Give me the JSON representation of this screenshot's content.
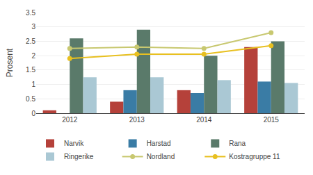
{
  "chart_data": {
    "type": "bar",
    "categories": [
      "2012",
      "2013",
      "2014",
      "2015"
    ],
    "series": [
      {
        "name": "Narvik",
        "type": "bar",
        "color": "#b5413a",
        "values": [
          0.1,
          0.4,
          0.8,
          2.3
        ]
      },
      {
        "name": "Harstad",
        "type": "bar",
        "color": "#3a7ca5",
        "values": [
          0.0,
          0.8,
          0.7,
          1.1
        ]
      },
      {
        "name": "Rana",
        "type": "bar",
        "color": "#5a7a6a",
        "values": [
          2.6,
          2.9,
          2.0,
          2.5
        ]
      },
      {
        "name": "Ringerike",
        "type": "bar",
        "color": "#aac8d4",
        "values": [
          1.25,
          1.25,
          1.15,
          1.05
        ]
      },
      {
        "name": "Nordland",
        "type": "line",
        "color": "#c8c870",
        "marker": "circle",
        "values": [
          2.25,
          2.3,
          2.25,
          2.8
        ]
      },
      {
        "name": "Kostragruppe 11",
        "type": "line",
        "color": "#e8c020",
        "marker": "circle",
        "values": [
          1.9,
          2.05,
          2.05,
          2.35
        ]
      }
    ],
    "y_label": "Prosent",
    "ylim": [
      0,
      3.5
    ],
    "yticks": [
      0,
      0.5,
      1,
      1.5,
      2,
      2.5,
      3,
      3.5
    ],
    "grid": true,
    "legend": "bottom"
  }
}
